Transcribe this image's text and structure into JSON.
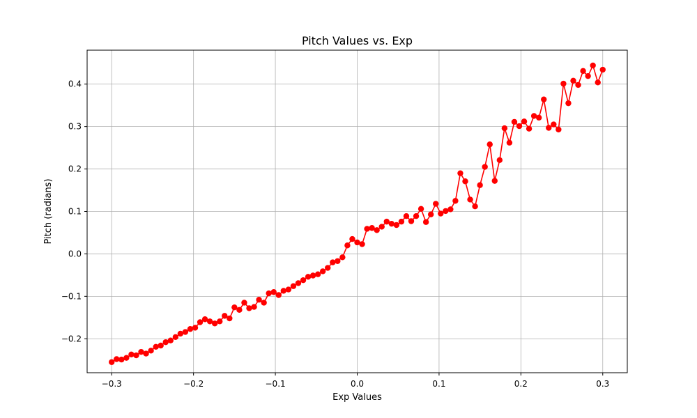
{
  "chart_data": {
    "type": "line",
    "title": "Pitch Values vs. Exp",
    "xlabel": "Exp Values",
    "ylabel": "Pitch (radians)",
    "xlim": [
      -0.33,
      0.33
    ],
    "ylim": [
      -0.28,
      0.48
    ],
    "xticks": [
      -0.3,
      -0.2,
      -0.1,
      0.0,
      0.1,
      0.2,
      0.3
    ],
    "xtick_labels": [
      "−0.3",
      "−0.2",
      "−0.1",
      "0.0",
      "0.1",
      "0.2",
      "0.3"
    ],
    "yticks": [
      -0.2,
      -0.1,
      0.0,
      0.1,
      0.2,
      0.3,
      0.4
    ],
    "ytick_labels": [
      "−0.2",
      "−0.1",
      "0.0",
      "0.1",
      "0.2",
      "0.3",
      "0.4"
    ],
    "grid": true,
    "color": "#ff0000",
    "series": [
      {
        "x_start": -0.3,
        "x_end": 0.3,
        "y": [
          -0.255,
          -0.248,
          -0.249,
          -0.245,
          -0.237,
          -0.239,
          -0.231,
          -0.235,
          -0.228,
          -0.219,
          -0.216,
          -0.208,
          -0.204,
          -0.196,
          -0.188,
          -0.184,
          -0.177,
          -0.174,
          -0.161,
          -0.154,
          -0.159,
          -0.164,
          -0.159,
          -0.146,
          -0.152,
          -0.126,
          -0.132,
          -0.115,
          -0.128,
          -0.125,
          -0.108,
          -0.115,
          -0.093,
          -0.09,
          -0.097,
          -0.087,
          -0.084,
          -0.076,
          -0.069,
          -0.062,
          -0.054,
          -0.051,
          -0.048,
          -0.041,
          -0.033,
          -0.02,
          -0.017,
          -0.008,
          0.02,
          0.035,
          0.027,
          0.023,
          0.059,
          0.061,
          0.056,
          0.064,
          0.076,
          0.071,
          0.068,
          0.076,
          0.089,
          0.077,
          0.089,
          0.106,
          0.075,
          0.093,
          0.118,
          0.095,
          0.101,
          0.105,
          0.125,
          0.19,
          0.171,
          0.128,
          0.112,
          0.162,
          0.205,
          0.258,
          0.172,
          0.221,
          0.296,
          0.262,
          0.311,
          0.301,
          0.312,
          0.295,
          0.325,
          0.321,
          0.364,
          0.297,
          0.305,
          0.293,
          0.401,
          0.355,
          0.408,
          0.398,
          0.431,
          0.419,
          0.444,
          0.404,
          0.434
        ]
      }
    ]
  }
}
